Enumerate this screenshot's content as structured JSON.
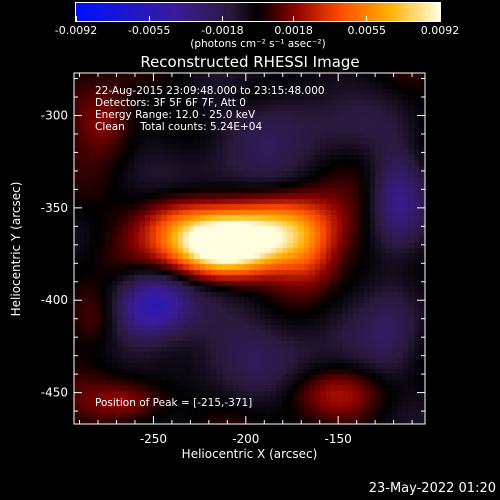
{
  "colorbar": {
    "ticks": [
      "-0.0092",
      "-0.0055",
      "-0.0018",
      "0.0018",
      "0.0055",
      "0.0092"
    ],
    "tick_values": [
      -0.0092,
      -0.0055,
      -0.0018,
      0.0018,
      0.0055,
      0.0092
    ],
    "range": [
      -0.0092,
      0.0092
    ],
    "unit_label": "(photons cm⁻² s⁻¹ asec⁻²)",
    "colors": [
      "#0010ff",
      "#3b1c9a",
      "#2a1a3c",
      "#000000",
      "#8a0000",
      "#ff4a00",
      "#ffb000",
      "#ffffe0"
    ]
  },
  "chart_data": {
    "type": "heatmap",
    "title": "Reconstructed RHESSI Image",
    "xlabel": "Heliocentric X (arcsec)",
    "ylabel": "Heliocentric Y (arcsec)",
    "xlim": [
      -293,
      -103
    ],
    "ylim": [
      -467,
      -277
    ],
    "x_ticks": [
      -250,
      -200,
      -150
    ],
    "y_ticks": [
      -450,
      -400,
      -350,
      -300
    ],
    "x_tick_labels": [
      "-250",
      "-200",
      "-150"
    ],
    "y_tick_labels": [
      "-450",
      "-400",
      "-350",
      "-300"
    ],
    "value_range": [
      -0.0092,
      0.0092
    ],
    "peak": {
      "x": -215,
      "y": -371
    },
    "annotations": {
      "time_range": "22-Aug-2015 23:09:48.000 to 23:15:48.000",
      "detectors": "Detectors: 3F 5F 6F 7F, Att 0",
      "energy": "Energy Range: 12.0 - 25.0 keV",
      "clean_label": "Clean",
      "counts": "Total counts: 5.24E+04",
      "peak_text": "Position of Peak = [-215,-371]"
    }
  },
  "footer": {
    "timestamp": "23-May-2022 01:20"
  }
}
